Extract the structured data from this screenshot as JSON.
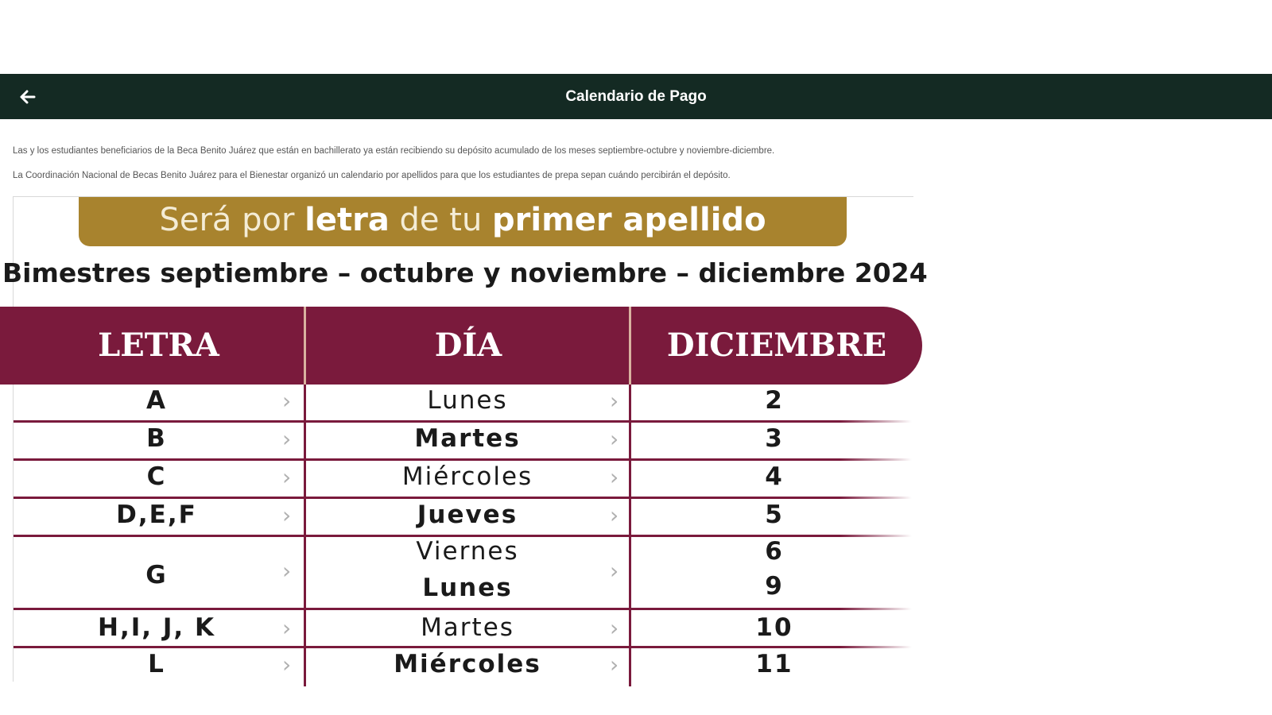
{
  "app_bar": {
    "title": "Calendario de Pago",
    "back_icon": "arrow-left-icon"
  },
  "intro": {
    "p1": "Las y los estudiantes beneficiarios de la Beca Benito Juárez que están en bachillerato ya están recibiendo su depósito acumulado de los meses septiembre-octubre y noviembre-diciembre.",
    "p2": "La Coordinación Nacional de Becas Benito Juárez para el Bienestar organizó un calendario por apellidos para que los estudiantes de prepa sepan cuándo percibirán el depósito."
  },
  "infographic": {
    "banner": {
      "part1": "Será por ",
      "part2": "letra",
      "part3": " de tu ",
      "part4": "primer apellido"
    },
    "subtitle": "Bimestres septiembre – octubre y noviembre – diciembre 2024",
    "headers": {
      "letra": "LETRA",
      "dia": "DÍA",
      "mes": "DICIEMBRE"
    },
    "rows": [
      {
        "letra": "A",
        "dia": "Lunes",
        "dia_bold": false,
        "fecha": "2"
      },
      {
        "letra": "B",
        "dia": "Martes",
        "dia_bold": true,
        "fecha": "3"
      },
      {
        "letra": "C",
        "dia": "Miércoles",
        "dia_bold": false,
        "fecha": "4"
      },
      {
        "letra": "D,E,F",
        "dia": "Jueves",
        "dia_bold": true,
        "fecha": "5"
      },
      {
        "letra": "G",
        "dia": "Viernes",
        "dia2": "Lunes",
        "dia_bold": false,
        "fecha": "6",
        "fecha2": "9"
      },
      {
        "letra": "H,I, J, K",
        "dia": "Martes",
        "dia_bold": false,
        "fecha": "10"
      },
      {
        "letra": "L",
        "dia": "Miércoles",
        "dia_bold": true,
        "fecha": "11"
      }
    ],
    "colors": {
      "banner_gold": "#a8832e",
      "table_maroon": "#7a1a3c",
      "app_bar_green": "#142a23"
    }
  }
}
